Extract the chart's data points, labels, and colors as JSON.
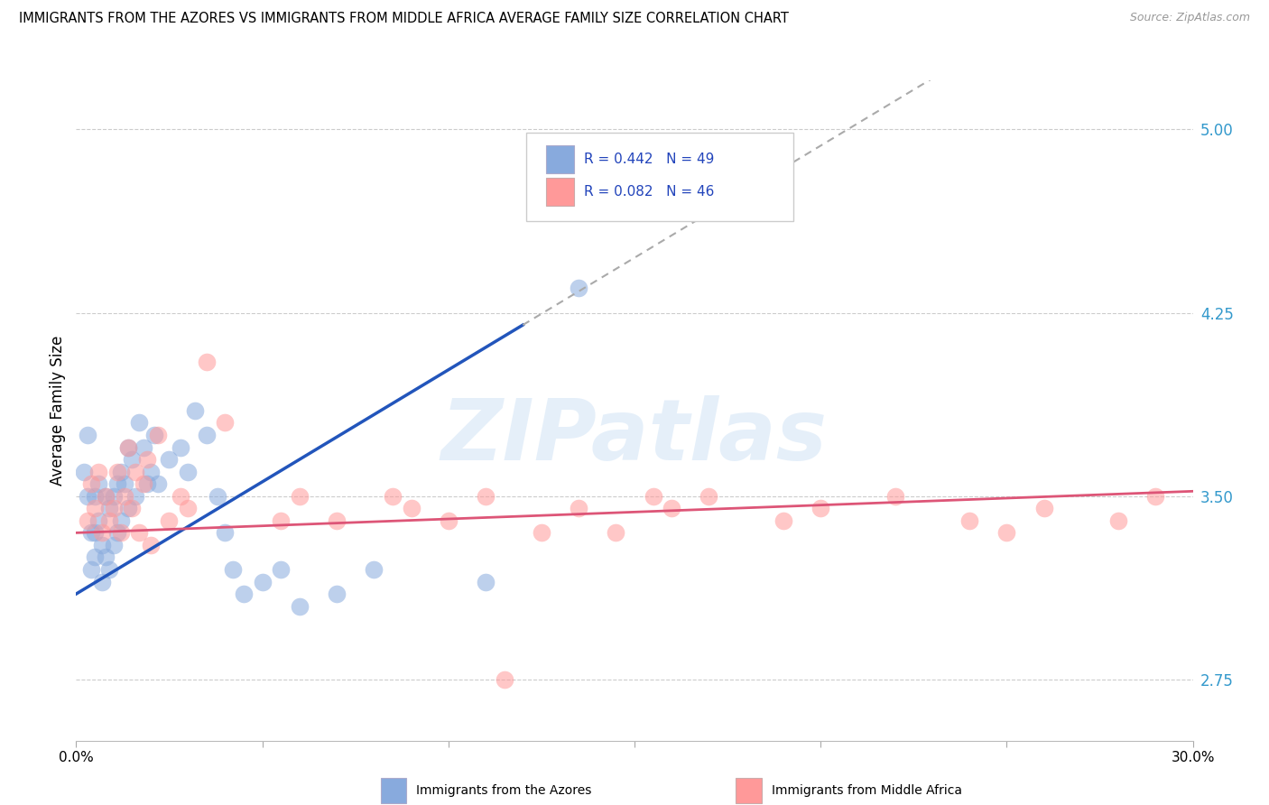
{
  "title": "IMMIGRANTS FROM THE AZORES VS IMMIGRANTS FROM MIDDLE AFRICA AVERAGE FAMILY SIZE CORRELATION CHART",
  "source": "Source: ZipAtlas.com",
  "ylabel": "Average Family Size",
  "xmin": 0.0,
  "xmax": 30.0,
  "ymin": 2.5,
  "ymax": 5.2,
  "yticks_right": [
    2.75,
    3.5,
    4.25,
    5.0
  ],
  "watermark": "ZIPatlas",
  "legend_r1": "R = 0.442   N = 49",
  "legend_r2": "R = 0.082   N = 46",
  "legend_label1": "Immigrants from the Azores",
  "legend_label2": "Immigrants from Middle Africa",
  "color_blue": "#88AADD",
  "color_pink": "#FF9999",
  "color_line_blue": "#2255BB",
  "color_line_pink": "#DD5577",
  "blue_x": [
    0.2,
    0.3,
    0.3,
    0.4,
    0.4,
    0.5,
    0.5,
    0.5,
    0.6,
    0.6,
    0.7,
    0.7,
    0.8,
    0.8,
    0.9,
    0.9,
    1.0,
    1.0,
    1.1,
    1.1,
    1.2,
    1.2,
    1.3,
    1.4,
    1.4,
    1.5,
    1.6,
    1.7,
    1.8,
    1.9,
    2.0,
    2.1,
    2.2,
    2.5,
    2.8,
    3.0,
    3.2,
    3.5,
    3.8,
    4.0,
    4.2,
    4.5,
    5.0,
    5.5,
    6.0,
    7.0,
    8.0,
    11.0,
    13.5
  ],
  "blue_y": [
    3.6,
    3.75,
    3.5,
    3.35,
    3.2,
    3.5,
    3.35,
    3.25,
    3.55,
    3.4,
    3.3,
    3.15,
    3.5,
    3.25,
    3.45,
    3.2,
    3.5,
    3.3,
    3.55,
    3.35,
    3.6,
    3.4,
    3.55,
    3.7,
    3.45,
    3.65,
    3.5,
    3.8,
    3.7,
    3.55,
    3.6,
    3.75,
    3.55,
    3.65,
    3.7,
    3.6,
    3.85,
    3.75,
    3.5,
    3.35,
    3.2,
    3.1,
    3.15,
    3.2,
    3.05,
    3.1,
    3.2,
    3.15,
    4.35
  ],
  "pink_x": [
    0.3,
    0.4,
    0.5,
    0.6,
    0.7,
    0.8,
    0.9,
    1.0,
    1.1,
    1.2,
    1.3,
    1.4,
    1.5,
    1.6,
    1.7,
    1.8,
    1.9,
    2.0,
    2.2,
    2.5,
    2.8,
    3.0,
    3.5,
    4.0,
    5.5,
    6.0,
    7.0,
    8.5,
    9.0,
    10.0,
    11.0,
    12.5,
    13.5,
    14.5,
    15.5,
    16.0,
    17.0,
    19.0,
    20.0,
    22.0,
    24.0,
    25.0,
    26.0,
    28.0,
    29.0,
    11.5
  ],
  "pink_y": [
    3.4,
    3.55,
    3.45,
    3.6,
    3.35,
    3.5,
    3.4,
    3.45,
    3.6,
    3.35,
    3.5,
    3.7,
    3.45,
    3.6,
    3.35,
    3.55,
    3.65,
    3.3,
    3.75,
    3.4,
    3.5,
    3.45,
    4.05,
    3.8,
    3.4,
    3.5,
    3.4,
    3.5,
    3.45,
    3.4,
    3.5,
    3.35,
    3.45,
    3.35,
    3.5,
    3.45,
    3.5,
    3.4,
    3.45,
    3.5,
    3.4,
    3.35,
    3.45,
    3.4,
    3.5,
    2.75
  ],
  "blue_line_x0": 0.0,
  "blue_line_x1": 12.0,
  "blue_dash_x0": 12.0,
  "blue_dash_x1": 30.0,
  "blue_line_y0": 3.1,
  "blue_line_y1": 4.2,
  "pink_line_x0": 0.0,
  "pink_line_x1": 30.0,
  "pink_line_y0": 3.35,
  "pink_line_y1": 3.52
}
